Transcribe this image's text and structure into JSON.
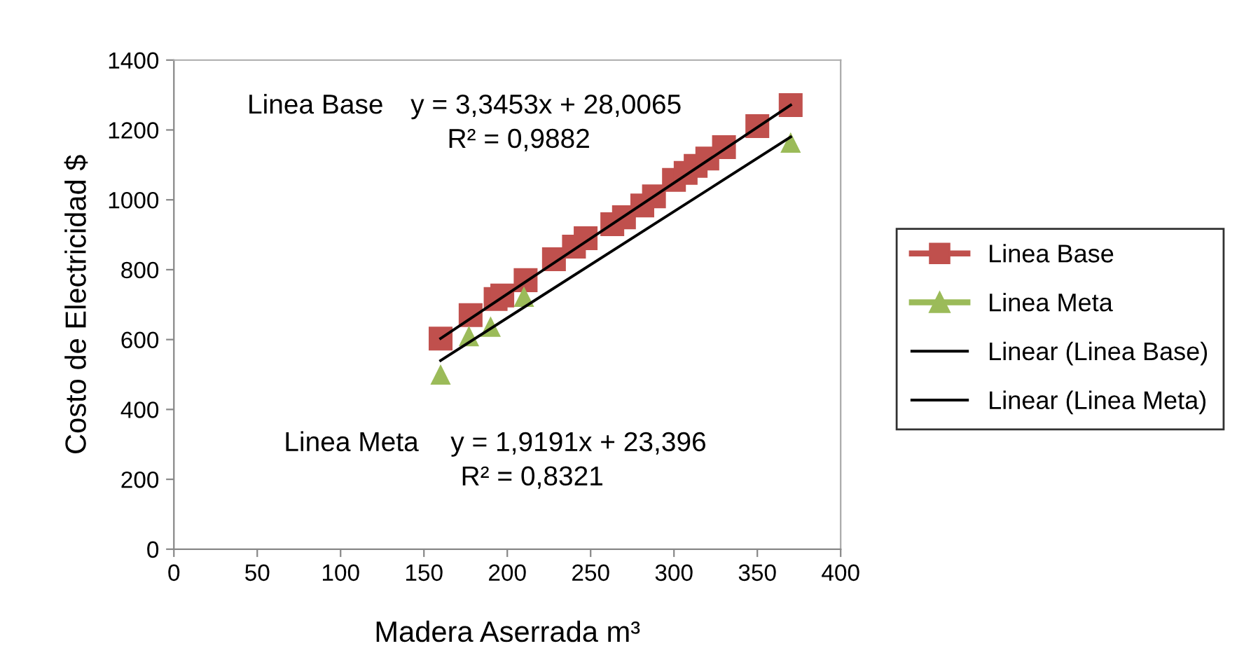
{
  "chart_data": {
    "type": "scatter",
    "xlabel": "Madera Aserrada m³",
    "ylabel": "Costo de Electricidad $",
    "xlim": [
      0,
      400
    ],
    "ylim": [
      0,
      1400
    ],
    "xticks": [
      0,
      50,
      100,
      150,
      200,
      250,
      300,
      350,
      400
    ],
    "yticks": [
      0,
      200,
      400,
      600,
      800,
      1000,
      1200,
      1400
    ],
    "grid": false,
    "legend": "right",
    "series": [
      {
        "name": "Linea Base",
        "marker": "square",
        "color": "#c0504d",
        "x": [
          160,
          178,
          193,
          197,
          211,
          228,
          240,
          247,
          263,
          270,
          281,
          288,
          300,
          307,
          313,
          320,
          330,
          350,
          370
        ],
        "values": [
          603,
          670,
          716,
          726,
          770,
          830,
          866,
          890,
          930,
          950,
          984,
          1010,
          1057,
          1077,
          1097,
          1118,
          1151,
          1211,
          1271
        ]
      },
      {
        "name": "Linea Meta",
        "marker": "triangle",
        "color": "#9bbb59",
        "x": [
          160,
          177,
          190,
          210,
          370
        ],
        "values": [
          500,
          610,
          637,
          723,
          1164
        ]
      },
      {
        "name": "Linear (Linea Base)",
        "type": "line",
        "color": "#000000",
        "x": [
          160,
          370
        ],
        "values": [
          603,
          1271
        ]
      },
      {
        "name": "Linear (Linea Meta)",
        "type": "line",
        "color": "#000000",
        "x": [
          160,
          370
        ],
        "values": [
          540,
          1180
        ]
      }
    ],
    "annotations": [
      "Linea Base",
      "y = 3,3453x + 28,0065",
      "R² = 0,9882",
      "Linea Meta",
      "y = 1,9191x + 23,396",
      "R² = 0,8321"
    ]
  }
}
